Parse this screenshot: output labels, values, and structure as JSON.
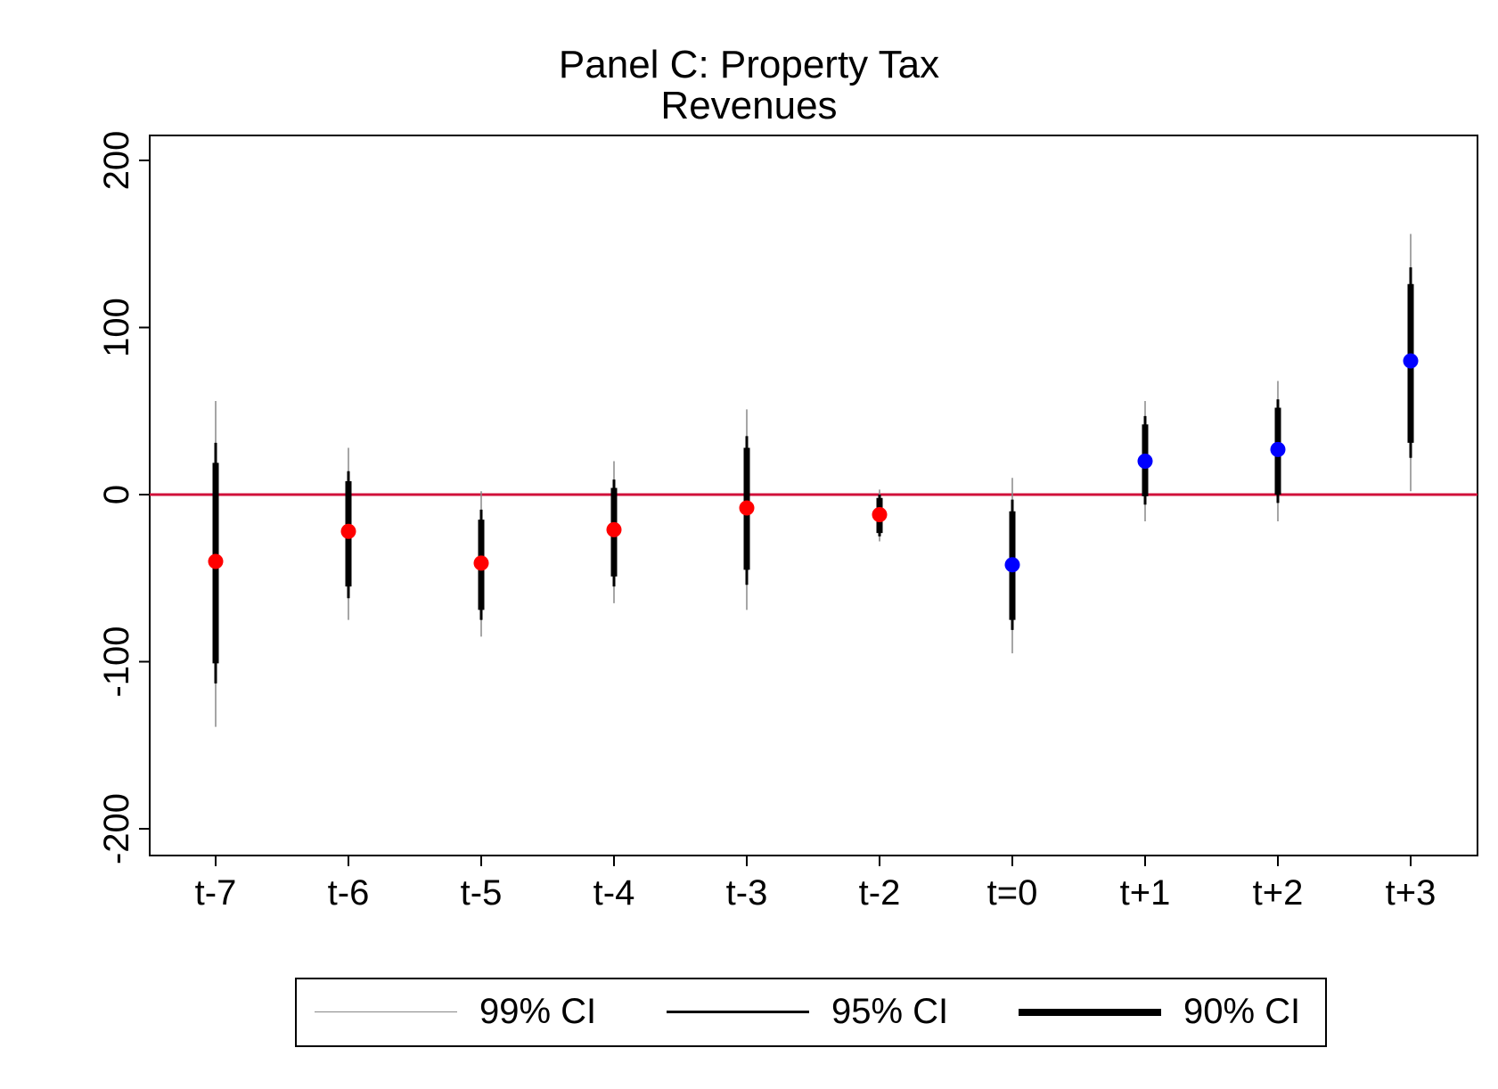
{
  "chart_data": {
    "type": "errorbar",
    "title": [
      "Panel C: Property Tax",
      "Revenues"
    ],
    "xlabel": "",
    "ylabel": "",
    "categories": [
      "t-7",
      "t-6",
      "t-5",
      "t-4",
      "t-3",
      "t-2",
      "t=0",
      "t+1",
      "t+2",
      "t+3"
    ],
    "ylim": [
      -215,
      215
    ],
    "yticks": [
      200,
      100,
      0,
      -100,
      -200
    ],
    "ytick_labels": [
      "200",
      "100",
      "0",
      "-100",
      "-200"
    ],
    "reference_line": {
      "y": 0,
      "color": "#d0103a"
    },
    "pre_color": "#ff0000",
    "post_color": "#0000ff",
    "points": [
      {
        "x": "t-7",
        "y": -40,
        "ci99": [
          -139,
          56
        ],
        "ci95": [
          -113,
          31
        ],
        "ci90": [
          -101,
          19
        ],
        "period": "pre"
      },
      {
        "x": "t-6",
        "y": -22,
        "ci99": [
          -75,
          28
        ],
        "ci95": [
          -62,
          14
        ],
        "ci90": [
          -55,
          8
        ],
        "period": "pre"
      },
      {
        "x": "t-5",
        "y": -41,
        "ci99": [
          -85,
          2
        ],
        "ci95": [
          -75,
          -9
        ],
        "ci90": [
          -69,
          -15
        ],
        "period": "pre"
      },
      {
        "x": "t-4",
        "y": -21,
        "ci99": [
          -65,
          20
        ],
        "ci95": [
          -55,
          9
        ],
        "ci90": [
          -49,
          4
        ],
        "period": "pre"
      },
      {
        "x": "t-3",
        "y": -8,
        "ci99": [
          -69,
          51
        ],
        "ci95": [
          -54,
          35
        ],
        "ci90": [
          -45,
          28
        ],
        "period": "pre"
      },
      {
        "x": "t-2",
        "y": -12,
        "ci99": [
          -28,
          3
        ],
        "ci95": [
          -25,
          0
        ],
        "ci90": [
          -23,
          -2
        ],
        "period": "pre"
      },
      {
        "x": "t=0",
        "y": -42,
        "ci99": [
          -95,
          10
        ],
        "ci95": [
          -81,
          -3
        ],
        "ci90": [
          -75,
          -10
        ],
        "period": "post"
      },
      {
        "x": "t+1",
        "y": 20,
        "ci99": [
          -16,
          56
        ],
        "ci95": [
          -6,
          47
        ],
        "ci90": [
          -1,
          42
        ],
        "period": "post"
      },
      {
        "x": "t+2",
        "y": 27,
        "ci99": [
          -16,
          68
        ],
        "ci95": [
          -5,
          57
        ],
        "ci90": [
          0,
          52
        ],
        "period": "post"
      },
      {
        "x": "t+3",
        "y": 80,
        "ci99": [
          2,
          156
        ],
        "ci95": [
          22,
          136
        ],
        "ci90": [
          31,
          126
        ],
        "period": "post"
      }
    ],
    "legend": {
      "position": "bottom",
      "items": [
        {
          "label": "99% CI",
          "style": "thin"
        },
        {
          "label": "95% CI",
          "style": "medium"
        },
        {
          "label": "90% CI",
          "style": "thick"
        }
      ]
    }
  }
}
